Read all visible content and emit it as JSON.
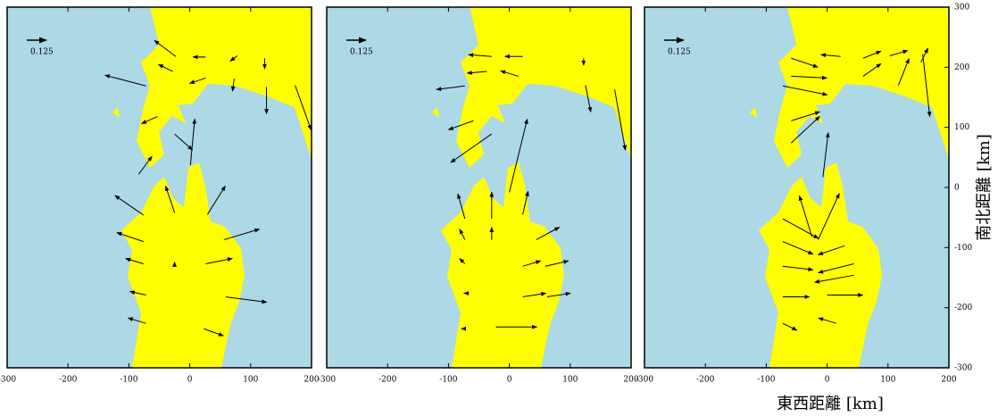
{
  "chart_data": [
    {
      "type": "quiver",
      "xlim": [
        -300,
        200
      ],
      "ylim": [
        -300,
        300
      ],
      "xticks": [
        -300,
        -200,
        -100,
        0,
        100,
        200
      ],
      "key": 0.125,
      "x": [
        -23,
        26,
        78,
        123,
        -28,
        -72,
        26,
        73,
        126,
        173,
        -53,
        -25,
        1,
        -84,
        -76,
        -25,
        29,
        -76,
        56,
        26,
        -76,
        -25,
        59,
        -72,
        -72,
        23
      ],
      "y": [
        218,
        217,
        219,
        215,
        193,
        169,
        182,
        181,
        167,
        170,
        118,
        89,
        37,
        22,
        -46,
        -42,
        -45,
        -90,
        -87,
        -127,
        -127,
        -130,
        -182,
        -179,
        -226,
        -235
      ],
      "u": [
        -0.136,
        -0.08,
        -0.045,
        0,
        -0.091,
        -0.261,
        -0.102,
        -0.011,
        0,
        0.102,
        -0.102,
        0.114,
        0.028,
        0.085,
        -0.182,
        -0.057,
        0.114,
        -0.17,
        0.227,
        0.17,
        -0.114,
        0,
        0.261,
        -0.102,
        -0.114,
        0.125
      ],
      "v": [
        0.102,
        0,
        -0.034,
        -0.068,
        0.045,
        0.068,
        -0.034,
        -0.08,
        -0.17,
        -0.284,
        -0.045,
        -0.102,
        0.295,
        0.114,
        0.125,
        0.17,
        0.182,
        0.057,
        0.068,
        0.034,
        0.034,
        0.023,
        -0.034,
        0.023,
        0.034,
        -0.045
      ]
    },
    {
      "type": "quiver",
      "xlim": [
        -300,
        200
      ],
      "ylim": [
        -300,
        300
      ],
      "xticks": [
        -300,
        -200,
        -100,
        0,
        100,
        200
      ],
      "key": 0.125,
      "x": [
        -29,
        22,
        122,
        -37,
        15,
        -73,
        125,
        173,
        -59,
        -29,
        0,
        -73,
        -29,
        22,
        -73,
        -29,
        44,
        -73,
        22,
        59,
        -66,
        22,
        62,
        -73,
        -22
      ],
      "y": [
        218,
        218,
        215,
        193,
        185,
        169,
        170,
        163,
        111,
        89,
        -8,
        -52,
        -52,
        -45,
        -87,
        -87,
        -87,
        -127,
        -131,
        -131,
        -176,
        -182,
        -182,
        -235,
        -232
      ],
      "u": [
        -0.148,
        -0.114,
        0,
        -0.125,
        -0.114,
        -0.182,
        0.034,
        0.068,
        -0.159,
        -0.261,
        0.114,
        -0.045,
        0,
        0.034,
        -0.034,
        0,
        0.148,
        -0.034,
        0.114,
        0.148,
        -0.034,
        0.148,
        0.148,
        -0.023,
        0.261
      ],
      "v": [
        0.011,
        0,
        -0.045,
        -0.011,
        0.034,
        -0.023,
        -0.17,
        -0.386,
        -0.057,
        -0.182,
        0.466,
        0.159,
        0.17,
        0.148,
        0.068,
        0.08,
        0.08,
        0.034,
        0.034,
        0.034,
        0,
        0.023,
        0.023,
        0,
        0
      ]
    },
    {
      "type": "quiver",
      "xlim": [
        -300,
        200
      ],
      "ylim": [
        -300,
        300
      ],
      "xticks": [
        -300,
        -200,
        -100,
        0,
        100,
        200
      ],
      "yticks": [
        -300,
        -200,
        -100,
        0,
        100,
        200,
        300
      ],
      "key": 0.125,
      "xlabel": "東西距離 [km]",
      "ylabel": "南北距離 [km]",
      "x": [
        -59,
        22,
        59,
        103,
        154,
        157,
        -59,
        59,
        117,
        -73,
        -59,
        -59,
        -7,
        -25,
        -15,
        -73,
        -73,
        29,
        44,
        -73,
        44,
        -73,
        0,
        -73,
        15
      ],
      "y": [
        215,
        218,
        215,
        219,
        208,
        222,
        185,
        185,
        170,
        169,
        111,
        74,
        17,
        -82,
        -87,
        -52,
        -90,
        -97,
        -127,
        -131,
        -146,
        -182,
        -179,
        -226,
        -226
      ],
      "u": [
        0.17,
        -0.125,
        0.114,
        0.114,
        0.045,
        0.045,
        0.227,
        0.114,
        0.068,
        0.284,
        0.182,
        0.182,
        0.034,
        -0.08,
        0.136,
        0.227,
        0.193,
        -0.17,
        -0.227,
        0.193,
        -0.25,
        0.17,
        0.227,
        0.091,
        -0.114
      ],
      "v": [
        -0.057,
        0.011,
        0.045,
        0.034,
        0.091,
        -0.398,
        -0.011,
        0.08,
        0.17,
        -0.057,
        0.057,
        0.17,
        0.284,
        0.261,
        0.295,
        -0.125,
        -0.08,
        -0.057,
        -0.057,
        -0.023,
        -0.045,
        0,
        0,
        -0.045,
        0.034
      ]
    }
  ]
}
